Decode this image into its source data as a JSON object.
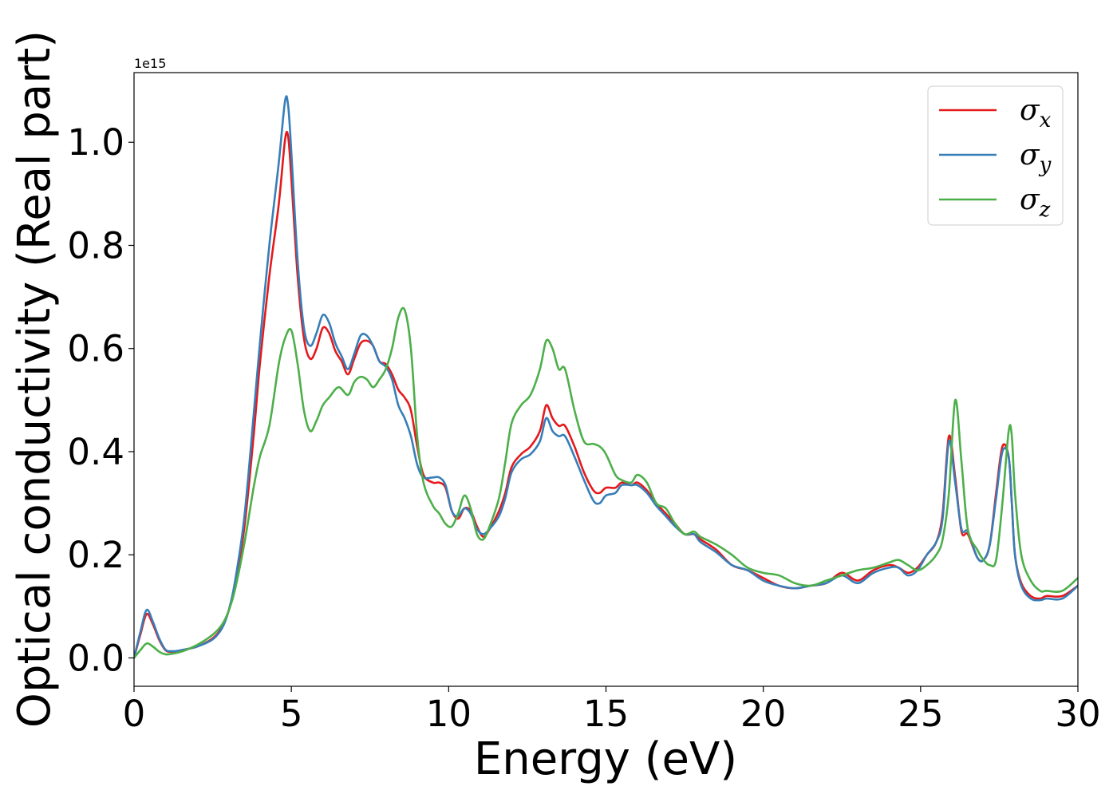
{
  "chart_data": {
    "type": "line",
    "title": "",
    "xlabel": "Energy (eV)",
    "ylabel": "Optical conductivity (Real part)",
    "y_offset_label": "1e15",
    "xlim": [
      0,
      30
    ],
    "ylim": [
      -0.055,
      1.135
    ],
    "grid": false,
    "legend_position": "top-right",
    "x_ticks": [
      0,
      5,
      10,
      15,
      20,
      25,
      30
    ],
    "x_tick_labels": [
      "0",
      "5",
      "10",
      "15",
      "20",
      "25",
      "30"
    ],
    "y_ticks": [
      0.0,
      0.2,
      0.4,
      0.6,
      0.8,
      1.0
    ],
    "y_tick_labels": [
      "0.0",
      "0.2",
      "0.4",
      "0.6",
      "0.8",
      "1.0"
    ],
    "series": [
      {
        "name": "σx",
        "symbol": "σ",
        "subscript": "x",
        "color": "#e41a1c",
        "x": [
          0,
          0.2,
          0.4,
          0.6,
          0.8,
          1.0,
          1.2,
          1.5,
          2.0,
          2.5,
          2.8,
          3.0,
          3.2,
          3.5,
          3.8,
          4.0,
          4.3,
          4.6,
          4.8,
          4.9,
          5.0,
          5.2,
          5.4,
          5.6,
          5.8,
          6.0,
          6.2,
          6.4,
          6.6,
          6.8,
          7.0,
          7.2,
          7.4,
          7.6,
          7.8,
          8.0,
          8.2,
          8.4,
          8.6,
          8.8,
          9.0,
          9.2,
          9.5,
          9.7,
          9.9,
          10.1,
          10.3,
          10.5,
          10.7,
          10.9,
          11.1,
          11.3,
          11.6,
          11.8,
          12.0,
          12.3,
          12.6,
          12.9,
          13.1,
          13.3,
          13.5,
          13.7,
          14.0,
          14.3,
          14.6,
          14.8,
          15.0,
          15.3,
          15.5,
          15.8,
          16.0,
          16.3,
          16.6,
          16.9,
          17.2,
          17.5,
          17.8,
          18.0,
          18.5,
          19.0,
          19.5,
          20.0,
          20.5,
          21.0,
          21.5,
          22.0,
          22.5,
          23.0,
          23.5,
          24.0,
          24.3,
          24.6,
          24.9,
          25.2,
          25.5,
          25.7,
          25.9,
          26.1,
          26.3,
          26.5,
          26.8,
          27.0,
          27.2,
          27.4,
          27.6,
          27.8,
          27.9,
          28.0,
          28.2,
          28.5,
          28.8,
          29.0,
          29.5,
          30.0
        ],
        "values": [
          0.0,
          0.045,
          0.085,
          0.065,
          0.035,
          0.015,
          0.012,
          0.015,
          0.022,
          0.038,
          0.06,
          0.09,
          0.14,
          0.25,
          0.43,
          0.57,
          0.74,
          0.88,
          1.005,
          1.01,
          0.93,
          0.74,
          0.62,
          0.58,
          0.6,
          0.64,
          0.63,
          0.595,
          0.575,
          0.55,
          0.58,
          0.61,
          0.615,
          0.605,
          0.575,
          0.57,
          0.55,
          0.52,
          0.505,
          0.48,
          0.41,
          0.355,
          0.34,
          0.34,
          0.33,
          0.285,
          0.27,
          0.29,
          0.285,
          0.255,
          0.235,
          0.25,
          0.285,
          0.32,
          0.37,
          0.395,
          0.41,
          0.44,
          0.49,
          0.465,
          0.45,
          0.45,
          0.41,
          0.36,
          0.325,
          0.32,
          0.33,
          0.33,
          0.34,
          0.335,
          0.34,
          0.325,
          0.3,
          0.28,
          0.26,
          0.24,
          0.24,
          0.23,
          0.21,
          0.18,
          0.17,
          0.155,
          0.14,
          0.135,
          0.14,
          0.145,
          0.165,
          0.15,
          0.17,
          0.18,
          0.175,
          0.165,
          0.175,
          0.2,
          0.225,
          0.28,
          0.43,
          0.35,
          0.245,
          0.24,
          0.195,
          0.19,
          0.22,
          0.32,
          0.41,
          0.39,
          0.3,
          0.2,
          0.145,
          0.12,
          0.115,
          0.12,
          0.12,
          0.14
        ]
      },
      {
        "name": "σy",
        "symbol": "σ",
        "subscript": "y",
        "color": "#377eb8",
        "x": [
          0,
          0.2,
          0.4,
          0.6,
          0.8,
          1.0,
          1.2,
          1.5,
          2.0,
          2.5,
          2.8,
          3.0,
          3.2,
          3.5,
          3.8,
          4.0,
          4.3,
          4.6,
          4.8,
          4.9,
          5.0,
          5.2,
          5.4,
          5.6,
          5.8,
          6.0,
          6.2,
          6.4,
          6.6,
          6.8,
          7.0,
          7.2,
          7.4,
          7.6,
          7.8,
          8.0,
          8.2,
          8.4,
          8.6,
          8.8,
          9.0,
          9.2,
          9.5,
          9.7,
          9.9,
          10.1,
          10.3,
          10.5,
          10.7,
          10.9,
          11.1,
          11.3,
          11.6,
          11.8,
          12.0,
          12.3,
          12.6,
          12.9,
          13.1,
          13.3,
          13.5,
          13.7,
          14.0,
          14.3,
          14.6,
          14.8,
          15.0,
          15.3,
          15.5,
          15.8,
          16.0,
          16.3,
          16.6,
          16.9,
          17.2,
          17.5,
          17.8,
          18.0,
          18.5,
          19.0,
          19.5,
          20.0,
          20.5,
          21.0,
          21.5,
          22.0,
          22.5,
          23.0,
          23.5,
          24.0,
          24.3,
          24.6,
          24.9,
          25.2,
          25.5,
          25.7,
          25.9,
          26.1,
          26.3,
          26.5,
          26.8,
          27.0,
          27.2,
          27.4,
          27.6,
          27.8,
          27.9,
          28.0,
          28.2,
          28.5,
          28.8,
          29.0,
          29.5,
          30.0
        ],
        "values": [
          0.0,
          0.05,
          0.093,
          0.07,
          0.038,
          0.016,
          0.013,
          0.015,
          0.022,
          0.036,
          0.058,
          0.09,
          0.145,
          0.27,
          0.47,
          0.61,
          0.8,
          0.96,
          1.08,
          1.07,
          0.98,
          0.77,
          0.64,
          0.605,
          0.63,
          0.665,
          0.65,
          0.61,
          0.585,
          0.56,
          0.59,
          0.625,
          0.625,
          0.605,
          0.575,
          0.565,
          0.54,
          0.49,
          0.465,
          0.43,
          0.375,
          0.35,
          0.35,
          0.35,
          0.335,
          0.285,
          0.275,
          0.29,
          0.28,
          0.25,
          0.24,
          0.25,
          0.275,
          0.31,
          0.36,
          0.385,
          0.395,
          0.42,
          0.465,
          0.44,
          0.43,
          0.43,
          0.39,
          0.345,
          0.305,
          0.3,
          0.315,
          0.32,
          0.335,
          0.335,
          0.335,
          0.32,
          0.295,
          0.275,
          0.255,
          0.24,
          0.24,
          0.225,
          0.205,
          0.18,
          0.17,
          0.15,
          0.14,
          0.135,
          0.14,
          0.145,
          0.16,
          0.145,
          0.165,
          0.175,
          0.175,
          0.16,
          0.17,
          0.2,
          0.225,
          0.27,
          0.42,
          0.34,
          0.25,
          0.245,
          0.195,
          0.19,
          0.22,
          0.31,
          0.4,
          0.39,
          0.3,
          0.2,
          0.14,
          0.115,
          0.112,
          0.115,
          0.115,
          0.14
        ]
      },
      {
        "name": "σz",
        "symbol": "σ",
        "subscript": "z",
        "color": "#4daf4a",
        "x": [
          0,
          0.2,
          0.4,
          0.6,
          0.8,
          1.0,
          1.2,
          1.5,
          2.0,
          2.5,
          2.8,
          3.0,
          3.2,
          3.5,
          3.8,
          4.0,
          4.3,
          4.6,
          4.8,
          5.0,
          5.2,
          5.4,
          5.6,
          5.8,
          6.0,
          6.2,
          6.5,
          6.8,
          7.0,
          7.2,
          7.4,
          7.6,
          7.8,
          8.0,
          8.2,
          8.4,
          8.6,
          8.8,
          9.0,
          9.2,
          9.5,
          9.7,
          9.9,
          10.1,
          10.3,
          10.5,
          10.7,
          10.9,
          11.1,
          11.3,
          11.6,
          11.8,
          12.0,
          12.3,
          12.6,
          12.9,
          13.1,
          13.3,
          13.5,
          13.7,
          14.0,
          14.3,
          14.6,
          14.8,
          15.0,
          15.3,
          15.5,
          15.8,
          16.0,
          16.3,
          16.6,
          16.9,
          17.2,
          17.5,
          17.8,
          18.0,
          18.5,
          19.0,
          19.5,
          20.0,
          20.5,
          21.0,
          21.5,
          22.0,
          22.5,
          23.0,
          23.5,
          24.0,
          24.3,
          24.6,
          24.9,
          25.2,
          25.5,
          25.7,
          25.9,
          26.1,
          26.3,
          26.5,
          26.8,
          27.0,
          27.2,
          27.4,
          27.6,
          27.8,
          27.9,
          28.0,
          28.2,
          28.5,
          28.8,
          29.0,
          29.5,
          30.0
        ],
        "values": [
          0.0,
          0.015,
          0.028,
          0.022,
          0.012,
          0.007,
          0.008,
          0.012,
          0.025,
          0.045,
          0.065,
          0.09,
          0.13,
          0.22,
          0.33,
          0.39,
          0.45,
          0.57,
          0.62,
          0.635,
          0.57,
          0.48,
          0.44,
          0.46,
          0.49,
          0.505,
          0.525,
          0.51,
          0.535,
          0.545,
          0.54,
          0.525,
          0.54,
          0.56,
          0.6,
          0.66,
          0.675,
          0.6,
          0.43,
          0.34,
          0.295,
          0.28,
          0.26,
          0.255,
          0.28,
          0.315,
          0.29,
          0.24,
          0.23,
          0.255,
          0.31,
          0.38,
          0.455,
          0.49,
          0.51,
          0.56,
          0.615,
          0.6,
          0.56,
          0.56,
          0.48,
          0.42,
          0.415,
          0.41,
          0.395,
          0.355,
          0.345,
          0.34,
          0.355,
          0.34,
          0.3,
          0.29,
          0.26,
          0.24,
          0.245,
          0.235,
          0.22,
          0.2,
          0.175,
          0.165,
          0.16,
          0.145,
          0.14,
          0.15,
          0.16,
          0.17,
          0.175,
          0.185,
          0.19,
          0.18,
          0.17,
          0.18,
          0.2,
          0.23,
          0.32,
          0.5,
          0.38,
          0.25,
          0.21,
          0.19,
          0.18,
          0.19,
          0.3,
          0.44,
          0.43,
          0.32,
          0.2,
          0.15,
          0.13,
          0.13,
          0.13,
          0.155
        ]
      }
    ]
  }
}
